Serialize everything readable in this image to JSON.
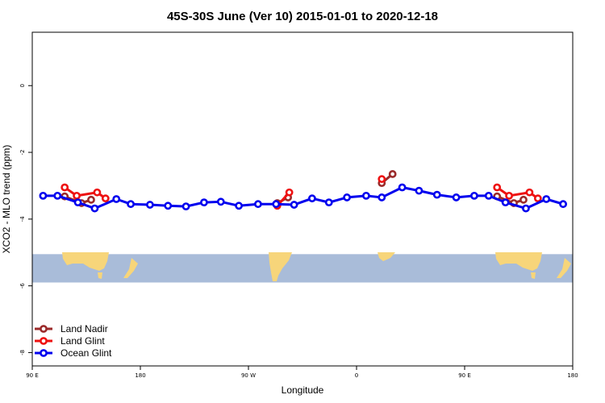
{
  "chart_data": {
    "type": "line",
    "title": "45S-30S June (Ver 10)   2015-01-01 to 2020-12-18",
    "xlabel": "Longitude",
    "ylabel": "XCO2 - MLO trend (ppm)",
    "xlim": [
      90,
      540
    ],
    "ylim": [
      -8.4,
      1.6
    ],
    "x_ticks": [
      {
        "value": 90,
        "label": "90 E"
      },
      {
        "value": 180,
        "label": "180"
      },
      {
        "value": 270,
        "label": "90 W"
      },
      {
        "value": 360,
        "label": "0"
      },
      {
        "value": 450,
        "label": "90 E"
      },
      {
        "value": 540,
        "label": "180"
      }
    ],
    "y_ticks": [
      {
        "value": 0,
        "label": "0"
      },
      {
        "value": -2,
        "label": "-2"
      },
      {
        "value": -4,
        "label": "-4"
      },
      {
        "value": -6,
        "label": "-6"
      },
      {
        "value": -8,
        "label": "-8"
      }
    ],
    "map_band": {
      "y_top": -5.05,
      "y_bottom": -5.9,
      "ocean_color": "#a9bcd9",
      "land_color": "#f7d57a"
    },
    "legend_position": "bottom-left",
    "series": [
      {
        "name": "Land Nadir",
        "color": "#9b2a2a",
        "segments": [
          [
            {
              "x": 117,
              "y": -3.32
            },
            {
              "x": 131,
              "y": -3.52
            },
            {
              "x": 139,
              "y": -3.42
            }
          ],
          [
            {
              "x": 294,
              "y": -3.52
            },
            {
              "x": 303,
              "y": -3.35
            }
          ],
          [
            {
              "x": 381,
              "y": -2.92
            },
            {
              "x": 390,
              "y": -2.65
            }
          ],
          [
            {
              "x": 477,
              "y": -3.32
            },
            {
              "x": 491,
              "y": -3.52
            },
            {
              "x": 499,
              "y": -3.42
            }
          ]
        ]
      },
      {
        "name": "Land Glint",
        "color": "#ee1111",
        "segments": [
          [
            {
              "x": 117,
              "y": -3.05
            },
            {
              "x": 127,
              "y": -3.3
            },
            {
              "x": 144,
              "y": -3.2
            },
            {
              "x": 151,
              "y": -3.38
            }
          ],
          [
            {
              "x": 294,
              "y": -3.6
            },
            {
              "x": 304,
              "y": -3.2
            }
          ],
          [
            {
              "x": 381,
              "y": -2.8
            }
          ],
          [
            {
              "x": 477,
              "y": -3.05
            },
            {
              "x": 487,
              "y": -3.3
            },
            {
              "x": 504,
              "y": -3.2
            },
            {
              "x": 511,
              "y": -3.38
            }
          ]
        ]
      },
      {
        "name": "Ocean Glint",
        "color": "#0000ee",
        "segments": [
          [
            {
              "x": 99,
              "y": -3.3
            },
            {
              "x": 111,
              "y": -3.3
            },
            {
              "x": 128,
              "y": -3.5
            },
            {
              "x": 142,
              "y": -3.68
            },
            {
              "x": 160,
              "y": -3.4
            },
            {
              "x": 172,
              "y": -3.55
            },
            {
              "x": 188,
              "y": -3.57
            },
            {
              "x": 203,
              "y": -3.6
            },
            {
              "x": 218,
              "y": -3.62
            },
            {
              "x": 233,
              "y": -3.5
            },
            {
              "x": 247,
              "y": -3.48
            },
            {
              "x": 262,
              "y": -3.6
            },
            {
              "x": 278,
              "y": -3.55
            },
            {
              "x": 293,
              "y": -3.55
            },
            {
              "x": 308,
              "y": -3.57
            },
            {
              "x": 323,
              "y": -3.38
            },
            {
              "x": 337,
              "y": -3.5
            },
            {
              "x": 352,
              "y": -3.35
            },
            {
              "x": 368,
              "y": -3.3
            },
            {
              "x": 381,
              "y": -3.35
            },
            {
              "x": 398,
              "y": -3.05
            },
            {
              "x": 412,
              "y": -3.15
            },
            {
              "x": 427,
              "y": -3.27
            },
            {
              "x": 443,
              "y": -3.35
            },
            {
              "x": 458,
              "y": -3.3
            },
            {
              "x": 470,
              "y": -3.3
            },
            {
              "x": 484,
              "y": -3.5
            },
            {
              "x": 501,
              "y": -3.68
            },
            {
              "x": 518,
              "y": -3.4
            },
            {
              "x": 532,
              "y": -3.55
            }
          ]
        ]
      }
    ]
  }
}
